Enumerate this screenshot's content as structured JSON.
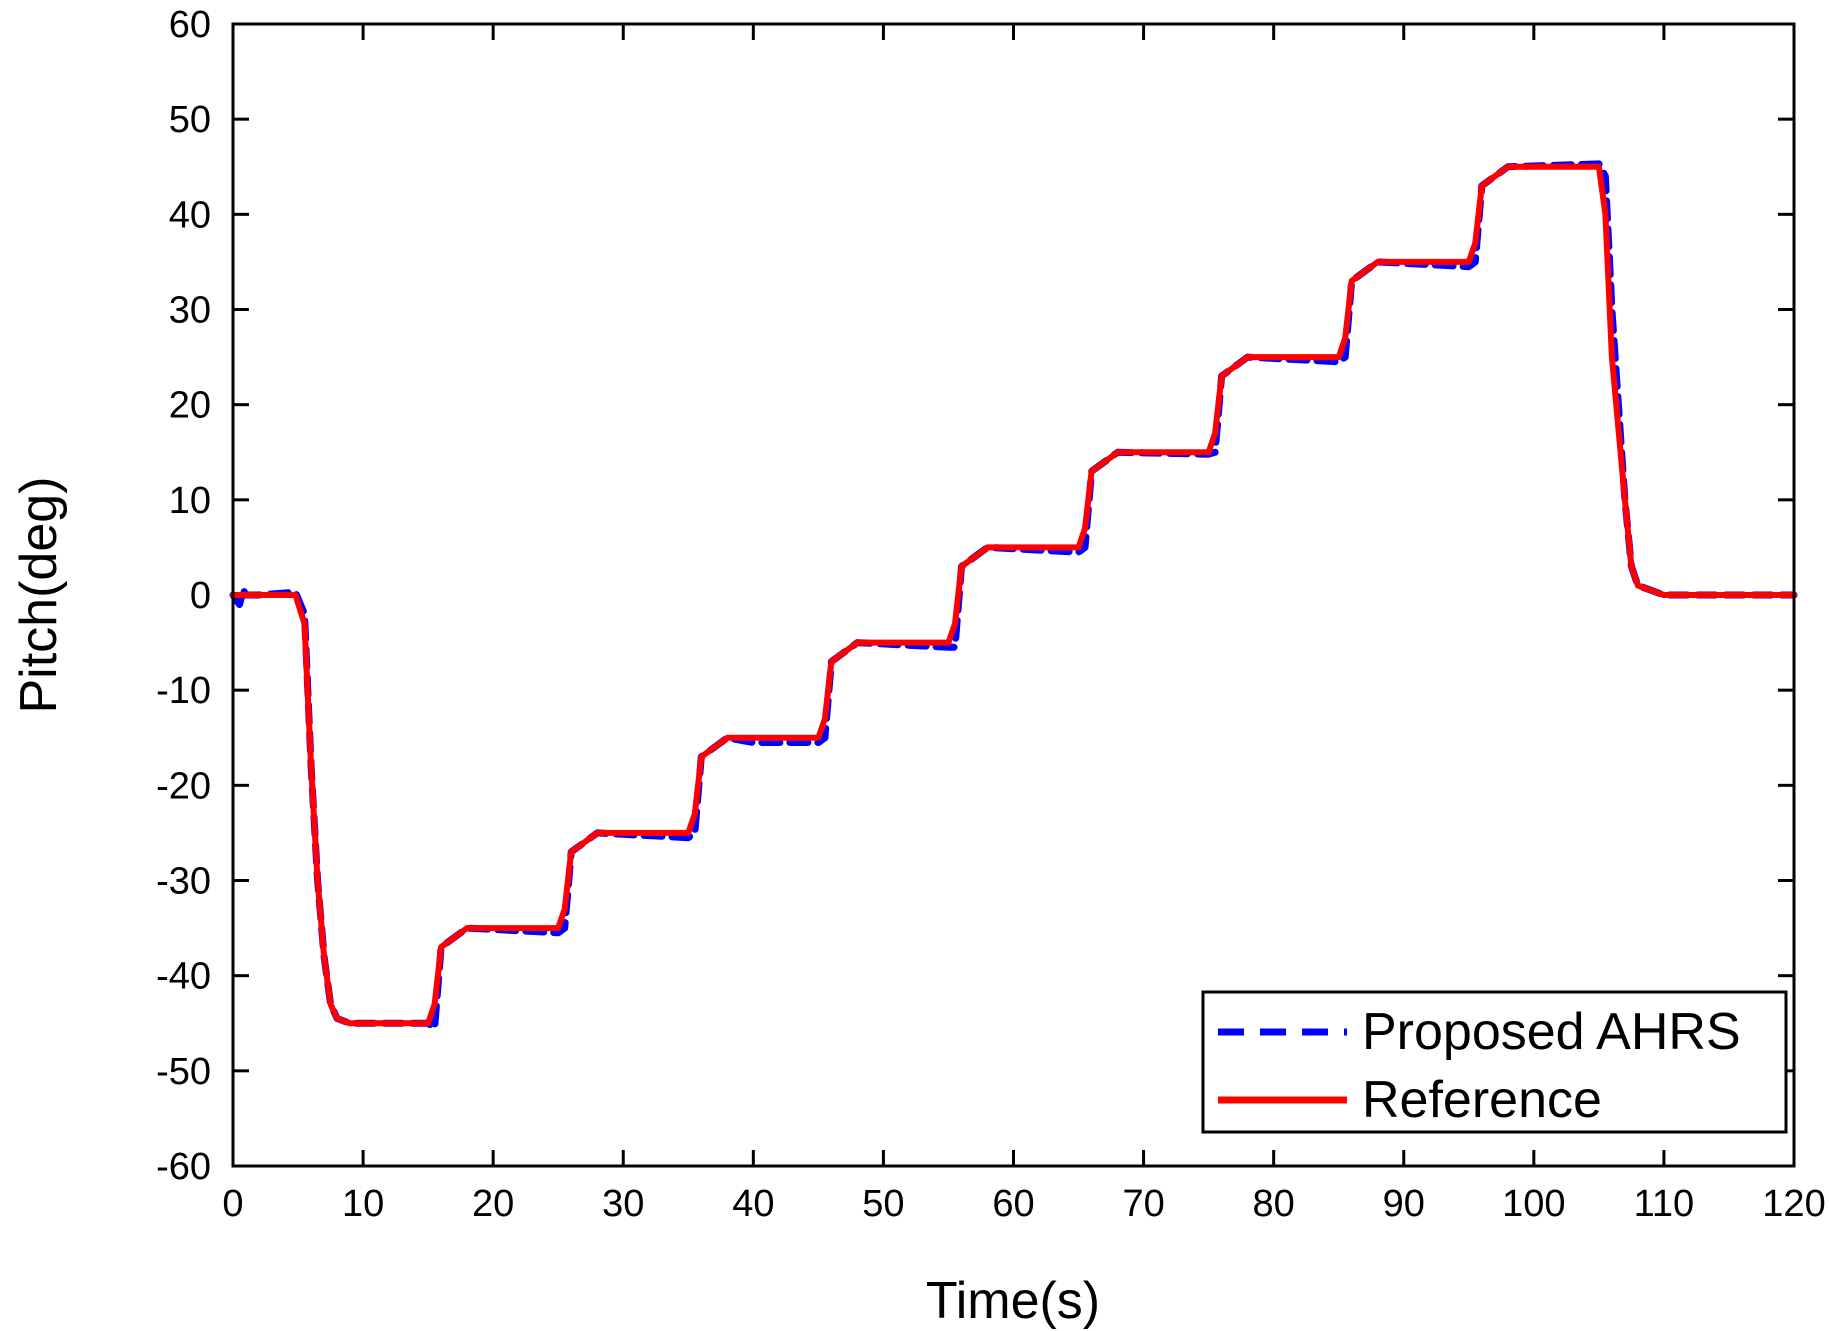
{
  "chart_data": {
    "type": "line",
    "xlabel": "Time(s)",
    "ylabel": "Pitch(deg)",
    "xlim": [
      0,
      120
    ],
    "ylim": [
      -60,
      60
    ],
    "xticks": [
      0,
      10,
      20,
      30,
      40,
      50,
      60,
      70,
      80,
      90,
      100,
      110,
      120
    ],
    "yticks": [
      60,
      50,
      40,
      30,
      20,
      10,
      0,
      -10,
      -20,
      -30,
      -40,
      -50,
      -60
    ],
    "xtick_labels": [
      "0",
      "10",
      "20",
      "30",
      "40",
      "50",
      "60",
      "70",
      "80",
      "90",
      "100",
      "110",
      "120"
    ],
    "ytick_labels": [
      "60",
      "50",
      "40",
      "30",
      "20",
      "10",
      "0",
      "-10",
      "-20",
      "-30",
      "-40",
      "-50",
      "-60"
    ],
    "grid": false,
    "legend_position": "bottom-right",
    "series": [
      {
        "name": "Proposed AHRS",
        "color": "#0000ff",
        "style": "dashed",
        "x": [
          0,
          0.5,
          0.8,
          1,
          2,
          4.8,
          5.5,
          6,
          6.5,
          7,
          7.5,
          8,
          9,
          15,
          15.5,
          16,
          18,
          25,
          25.5,
          26,
          28,
          35,
          35.5,
          36,
          38,
          40,
          45,
          45.5,
          46,
          48,
          55,
          55.5,
          56,
          58,
          65,
          65.5,
          66,
          68,
          75,
          75.5,
          76,
          78,
          85,
          85.5,
          86,
          88,
          95,
          95.5,
          96,
          98,
          105,
          105.5,
          106,
          107,
          107.5,
          108,
          110,
          120
        ],
        "y": [
          0,
          -1,
          0.5,
          0,
          0,
          0.3,
          -2,
          -18,
          -30,
          -38,
          -43,
          -44.5,
          -45,
          -45,
          -45.5,
          -37,
          -35,
          -35.5,
          -35,
          -27,
          -25,
          -25.5,
          -25,
          -17,
          -15,
          -15.5,
          -15.5,
          -15,
          -7,
          -5,
          -5.5,
          -5.5,
          3,
          5,
          4.5,
          5,
          13,
          15,
          14.8,
          15,
          23,
          25,
          24.5,
          25,
          33,
          35,
          34.5,
          35,
          43,
          45,
          45.3,
          44,
          30,
          10,
          3,
          1,
          0,
          0
        ]
      },
      {
        "name": "Reference",
        "color": "#ff0000",
        "style": "solid",
        "x": [
          0,
          4.8,
          5.5,
          6,
          6.5,
          7,
          7.5,
          8,
          9,
          15,
          15.5,
          16,
          18,
          25,
          25.5,
          26,
          28,
          35,
          35.5,
          36,
          38,
          45,
          45.5,
          46,
          48,
          55,
          55.5,
          56,
          58,
          65,
          65.5,
          66,
          68,
          75,
          75.5,
          76,
          78,
          85,
          85.5,
          86,
          88,
          95,
          95.5,
          96,
          98,
          105,
          105.5,
          106,
          107,
          107.5,
          108,
          110,
          120
        ],
        "y": [
          0,
          0,
          -3,
          -18,
          -30,
          -38,
          -43,
          -44.5,
          -45,
          -45,
          -43,
          -37,
          -35,
          -35,
          -33,
          -27,
          -25,
          -25,
          -23,
          -17,
          -15,
          -15,
          -13,
          -7,
          -5,
          -5,
          -3,
          3,
          5,
          5,
          7,
          13,
          15,
          15,
          17,
          23,
          25,
          25,
          27,
          33,
          35,
          35,
          37,
          43,
          45,
          45,
          40,
          25,
          10,
          3,
          1,
          0,
          0
        ]
      }
    ]
  }
}
